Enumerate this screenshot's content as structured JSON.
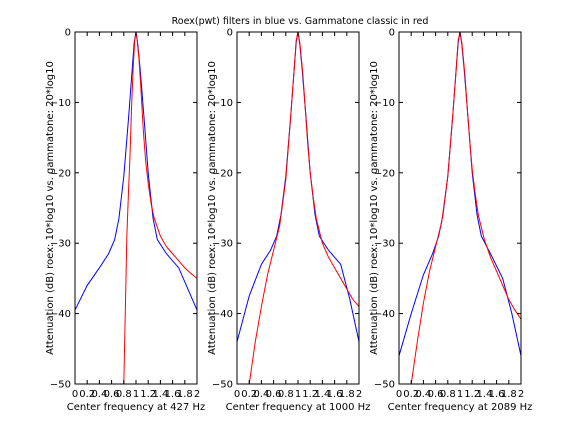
{
  "chart_data": [
    {
      "type": "line",
      "title": "Roex(pwt) filters in blue vs. Gammatone classic in red",
      "xlabel": "Center frequency at 427 Hz",
      "ylabel": "Attenuation (dB) roex: 10*log10 vs. gammatone: 20*log10",
      "xlim": [
        0,
        2
      ],
      "ylim": [
        -50,
        0
      ],
      "xticks": [
        0,
        0.2,
        0.4,
        0.6,
        0.8,
        1,
        1.2,
        1.4,
        1.6,
        1.8,
        2
      ],
      "xtick_labels": [
        "0",
        "0.2",
        "0.4",
        "0.6",
        "0.8",
        "1",
        "1.2",
        "1.4",
        "1.6",
        "1.8",
        "2"
      ],
      "yticks": [
        0,
        -10,
        -20,
        -30,
        -40,
        -50
      ],
      "ytick_labels": [
        "0",
        "−10",
        "−20",
        "−30",
        "−40",
        "−50"
      ],
      "grid": false,
      "series": [
        {
          "color": "#0000ff",
          "x": [
            0,
            0.2,
            0.4,
            0.55,
            0.65,
            0.72,
            0.8,
            0.88,
            0.94,
            0.97,
            1.0,
            1.03,
            1.07,
            1.13,
            1.2,
            1.28,
            1.35,
            1.5,
            1.7,
            1.85,
            2.0
          ],
          "y": [
            -39.5,
            -36,
            -33.5,
            -31.5,
            -29.5,
            -26.5,
            -20.5,
            -12,
            -5,
            -1.5,
            0,
            -1.8,
            -5.5,
            -12,
            -20,
            -26.5,
            -29.5,
            -31.5,
            -33.5,
            -36.5,
            -39.5
          ]
        },
        {
          "color": "#ff0000",
          "x": [
            0.8,
            0.85,
            0.88,
            0.9,
            0.93,
            0.96,
            0.98,
            1.0,
            1.02,
            1.05,
            1.08,
            1.12,
            1.16,
            1.2,
            1.25,
            1.3,
            1.4,
            1.5,
            1.6,
            1.7,
            1.8,
            1.9,
            2.0
          ],
          "y": [
            -50,
            -29,
            -22,
            -18,
            -10,
            -4,
            -1.2,
            0,
            -1.2,
            -4,
            -8,
            -14,
            -18.5,
            -21.5,
            -24.5,
            -26.5,
            -29,
            -30.5,
            -31.5,
            -32.5,
            -33.5,
            -34.3,
            -35
          ]
        }
      ]
    },
    {
      "type": "line",
      "xlabel": "Center frequency at 1000 Hz",
      "ylabel": "Attenuation (dB) roex: 10*log10 vs. gammatone: 20*log10",
      "xlim": [
        0,
        2
      ],
      "ylim": [
        -50,
        0
      ],
      "xticks": [
        0,
        0.2,
        0.4,
        0.6,
        0.8,
        1,
        1.2,
        1.4,
        1.6,
        1.8,
        2
      ],
      "xtick_labels": [
        "0",
        "0.2",
        "0.4",
        "0.6",
        "0.8",
        "1",
        "1.2",
        "1.4",
        "1.6",
        "1.8",
        "2"
      ],
      "yticks": [
        0,
        -10,
        -20,
        -30,
        -40,
        -50
      ],
      "ytick_labels": [
        "0",
        "−10",
        "−20",
        "−30",
        "−40",
        "−50"
      ],
      "grid": false,
      "series": [
        {
          "color": "#0000ff",
          "x": [
            0,
            0.2,
            0.4,
            0.55,
            0.65,
            0.72,
            0.8,
            0.88,
            0.94,
            0.97,
            1.0,
            1.03,
            1.07,
            1.13,
            1.2,
            1.28,
            1.35,
            1.5,
            1.7,
            1.85,
            2.0
          ],
          "y": [
            -44,
            -37.5,
            -33,
            -31,
            -29,
            -26,
            -20.5,
            -12,
            -5,
            -1.5,
            0,
            -1.8,
            -5.5,
            -12,
            -20,
            -26,
            -29,
            -31,
            -33,
            -38,
            -44
          ]
        },
        {
          "color": "#ff0000",
          "x": [
            0.2,
            0.3,
            0.4,
            0.5,
            0.6,
            0.7,
            0.8,
            0.88,
            0.94,
            0.97,
            1.0,
            1.03,
            1.08,
            1.12,
            1.16,
            1.2,
            1.25,
            1.3,
            1.4,
            1.5,
            1.6,
            1.7,
            1.8,
            1.9,
            2.0
          ],
          "y": [
            -50,
            -44,
            -39,
            -34.5,
            -31,
            -27.5,
            -21,
            -12,
            -5,
            -1.2,
            0,
            -1.5,
            -6,
            -11,
            -16,
            -20,
            -23.5,
            -26.5,
            -30,
            -32,
            -33.5,
            -35,
            -36.5,
            -38,
            -39
          ]
        }
      ]
    },
    {
      "type": "line",
      "xlabel": "Center frequency at 2089 Hz",
      "ylabel": "Attenuation (dB) roex: 10*log10 vs. gammatone: 20*log10",
      "xlim": [
        0,
        2
      ],
      "ylim": [
        -50,
        0
      ],
      "xticks": [
        0,
        0.2,
        0.4,
        0.6,
        0.8,
        1,
        1.2,
        1.4,
        1.6,
        1.8,
        2
      ],
      "xtick_labels": [
        "0",
        "0.2",
        "0.4",
        "0.6",
        "0.8",
        "1",
        "1.2",
        "1.4",
        "1.6",
        "1.8",
        "2"
      ],
      "yticks": [
        0,
        -10,
        -20,
        -30,
        -40,
        -50
      ],
      "ytick_labels": [
        "0",
        "−10",
        "−20",
        "−30",
        "−40",
        "−50"
      ],
      "grid": false,
      "series": [
        {
          "color": "#0000ff",
          "x": [
            0,
            0.2,
            0.4,
            0.55,
            0.65,
            0.72,
            0.8,
            0.88,
            0.94,
            0.97,
            1.0,
            1.03,
            1.07,
            1.13,
            1.2,
            1.28,
            1.35,
            1.5,
            1.7,
            1.85,
            2.0
          ],
          "y": [
            -46,
            -40,
            -34.5,
            -31.5,
            -29,
            -26,
            -20.5,
            -12,
            -5,
            -1.5,
            0,
            -1.8,
            -5.5,
            -12,
            -20,
            -26,
            -29,
            -31.5,
            -35,
            -40,
            -46
          ]
        },
        {
          "color": "#ff0000",
          "x": [
            0.2,
            0.3,
            0.4,
            0.5,
            0.6,
            0.7,
            0.8,
            0.88,
            0.94,
            0.97,
            1.0,
            1.03,
            1.08,
            1.12,
            1.16,
            1.2,
            1.25,
            1.3,
            1.4,
            1.5,
            1.6,
            1.7,
            1.8,
            1.9,
            2.0
          ],
          "y": [
            -50,
            -44,
            -38.5,
            -34,
            -30.5,
            -27,
            -20.5,
            -12,
            -5,
            -1.2,
            0,
            -1.5,
            -6,
            -11,
            -15.5,
            -19.5,
            -23,
            -26,
            -29.5,
            -32,
            -34,
            -36,
            -38,
            -39.5,
            -40.8
          ]
        }
      ]
    }
  ]
}
